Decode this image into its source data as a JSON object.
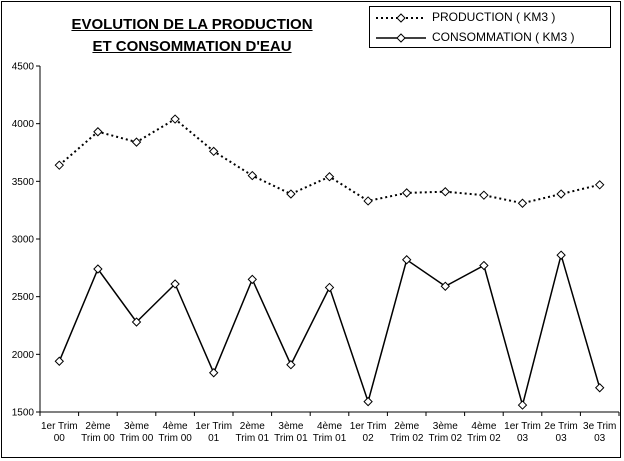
{
  "title_line1": "EVOLUTION DE LA PRODUCTION",
  "title_line2": "ET CONSOMMATION D'EAU",
  "legend": {
    "production": "PRODUCTION ( KM3 )",
    "consommation": "CONSOMMATION ( KM3 )"
  },
  "chart_data": {
    "type": "line",
    "title": "EVOLUTION DE LA PRODUCTION ET CONSOMMATION D'EAU",
    "xlabel": "",
    "ylabel": "",
    "ylim": [
      1500,
      4500
    ],
    "yticks": [
      1500,
      2000,
      2500,
      3000,
      3500,
      4000,
      4500
    ],
    "grid": false,
    "legend_position": "top-right",
    "categories": [
      [
        "1er Trim",
        "00"
      ],
      [
        "2ème",
        "Trim 00"
      ],
      [
        "3ème",
        "Trim 00"
      ],
      [
        "4ème",
        "Trim 00"
      ],
      [
        "1er Trim",
        "01"
      ],
      [
        "2ème",
        "Trim 01"
      ],
      [
        "3ème",
        "Trim 01"
      ],
      [
        "4ème",
        "Trim 01"
      ],
      [
        "1er Trim",
        "02"
      ],
      [
        "2ème",
        "Trim 02"
      ],
      [
        "3ème",
        "Trim 02"
      ],
      [
        "4ème",
        "Trim 02"
      ],
      [
        "1er Trim",
        "03"
      ],
      [
        "2e Trim",
        "03"
      ],
      [
        "3e Trim",
        "03"
      ]
    ],
    "series": [
      {
        "name": "PRODUCTION ( KM3 )",
        "style": "dotted",
        "color": "#000000",
        "marker": "diamond",
        "values": [
          3640,
          3930,
          3840,
          4040,
          3760,
          3550,
          3390,
          3540,
          3330,
          3400,
          3410,
          3380,
          3310,
          3390,
          3470
        ]
      },
      {
        "name": "CONSOMMATION ( KM3 )",
        "style": "solid",
        "color": "#000000",
        "marker": "diamond",
        "values": [
          1940,
          2740,
          2280,
          2610,
          1840,
          2650,
          1910,
          2580,
          1590,
          2820,
          2590,
          2770,
          1560,
          2860,
          1710
        ]
      }
    ]
  }
}
